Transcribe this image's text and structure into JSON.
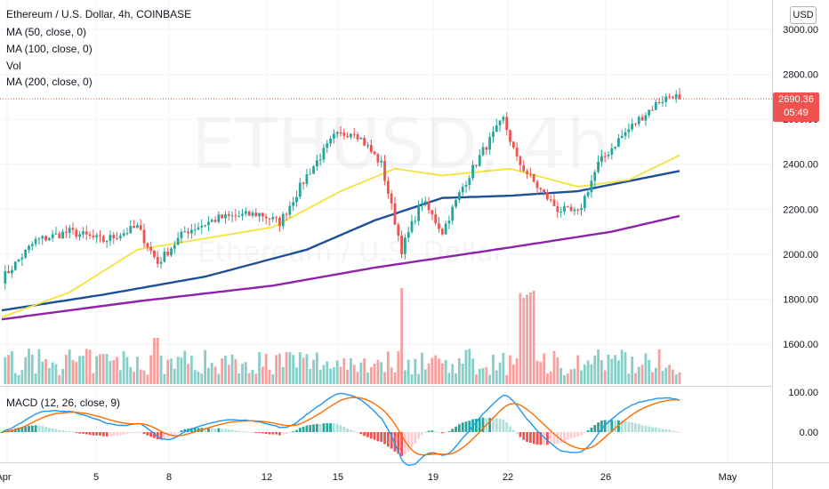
{
  "header": {
    "symbol_title": "Ethereum / U.S. Dollar, 4h, COINBASE",
    "ma50_label": "MA (50, close, 0)",
    "ma100_label": "MA (100, close, 0)",
    "vol_label": "Vol",
    "ma200_label": "MA (200, close, 0)",
    "currency_button": "USD"
  },
  "watermark": {
    "ticker": "ETHUSD, 4h",
    "name": "Ethereum / U.S. Dollar"
  },
  "price_tag": {
    "price": "2690.36",
    "countdown": "05:49"
  },
  "macd": {
    "label": "MACD (12, 26, close, 9)"
  },
  "colors": {
    "up": "#26a69a",
    "down": "#ef5350",
    "ma50": "#f5e23a",
    "ma100": "#1e4f99",
    "ma200": "#8e24aa",
    "macd_line": "#2196f3",
    "signal_line": "#ff6d00"
  },
  "chart_data": {
    "type": "candlestick",
    "title": "Ethereum / U.S. Dollar, 4h, COINBASE",
    "price_axis": {
      "ticks": [
        "3000.00",
        "2800.00",
        "2600.00",
        "2400.00",
        "2200.00",
        "2000.00",
        "1800.00",
        "1600.00"
      ],
      "ylim": [
        1420,
        3060
      ]
    },
    "macd_axis": {
      "ticks": [
        "100.00",
        "0.00"
      ]
    },
    "time_axis": [
      "Apr",
      "5",
      "8",
      "12",
      "15",
      "19",
      "22",
      "26",
      "May"
    ],
    "last_price": 2690.36,
    "price_anchors": [
      [
        0,
        1890
      ],
      [
        10,
        2060
      ],
      [
        20,
        2100
      ],
      [
        30,
        2060
      ],
      [
        40,
        2120
      ],
      [
        46,
        1960
      ],
      [
        54,
        2100
      ],
      [
        64,
        2160
      ],
      [
        76,
        2180
      ],
      [
        82,
        2140
      ],
      [
        90,
        2350
      ],
      [
        98,
        2520
      ],
      [
        104,
        2550
      ],
      [
        112,
        2400
      ],
      [
        118,
        2020
      ],
      [
        124,
        2240
      ],
      [
        130,
        2100
      ],
      [
        136,
        2300
      ],
      [
        142,
        2460
      ],
      [
        148,
        2600
      ],
      [
        152,
        2420
      ],
      [
        158,
        2300
      ],
      [
        164,
        2200
      ],
      [
        170,
        2180
      ],
      [
        176,
        2400
      ],
      [
        182,
        2510
      ],
      [
        188,
        2600
      ],
      [
        194,
        2680
      ],
      [
        198,
        2710
      ],
      [
        200,
        2690
      ]
    ],
    "ma50": [
      [
        0,
        1720
      ],
      [
        20,
        1830
      ],
      [
        40,
        2020
      ],
      [
        60,
        2070
      ],
      [
        80,
        2120
      ],
      [
        100,
        2280
      ],
      [
        116,
        2380
      ],
      [
        130,
        2350
      ],
      [
        150,
        2380
      ],
      [
        170,
        2300
      ],
      [
        185,
        2330
      ],
      [
        200,
        2440
      ]
    ],
    "ma100": [
      [
        0,
        1750
      ],
      [
        30,
        1820
      ],
      [
        60,
        1900
      ],
      [
        90,
        2020
      ],
      [
        110,
        2150
      ],
      [
        130,
        2250
      ],
      [
        150,
        2260
      ],
      [
        170,
        2280
      ],
      [
        200,
        2370
      ]
    ],
    "ma200": [
      [
        0,
        1710
      ],
      [
        40,
        1790
      ],
      [
        80,
        1860
      ],
      [
        110,
        1940
      ],
      [
        150,
        2030
      ],
      [
        180,
        2100
      ],
      [
        200,
        2170
      ]
    ]
  }
}
